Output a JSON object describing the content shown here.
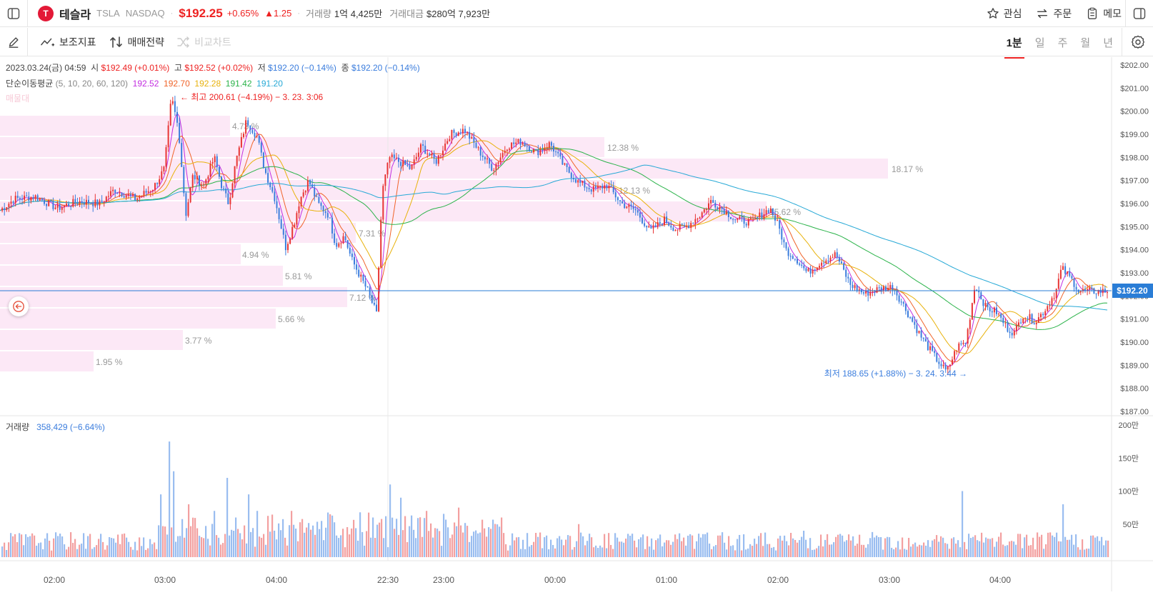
{
  "header": {
    "logo": "T",
    "name": "테슬라",
    "ticker": "TSLA",
    "exchange": "NASDAQ",
    "price": "$192.25",
    "change_pct": "+0.65%",
    "change_abs": "▲1.25",
    "volume_label": "거래량",
    "volume": "1억 4,425만",
    "amount_label": "거래대금",
    "amount": "$280억 7,923만",
    "actions": [
      "관심",
      "주문",
      "메모"
    ]
  },
  "toolbar": {
    "indicators": "보조지표",
    "strategy": "매매전략",
    "compare": "비교차트",
    "periods": [
      "1분",
      "일",
      "주",
      "월",
      "년"
    ],
    "active_period": "1분"
  },
  "ohlc": {
    "date": "2023.03.24(금) 04:59",
    "open_label": "시",
    "open": "$192.49 (+0.01%)",
    "high_label": "고",
    "high": "$192.52 (+0.02%)",
    "low_label": "저",
    "low": "$192.20 (−0.14%)",
    "close_label": "종",
    "close": "$192.20 (−0.14%)"
  },
  "ma": {
    "label": "단순이동평균",
    "periods": "(5, 10, 20, 60, 120)",
    "values": [
      "192.52",
      "192.70",
      "192.28",
      "191.42",
      "191.20"
    ],
    "colors": [
      "#c22de0",
      "#f0642a",
      "#e8b20c",
      "#2bb34a",
      "#27a9d6"
    ]
  },
  "faded_label": "매물대",
  "annotations": {
    "high": "← 최고 200.61 (−4.19%) − 3. 23. 3:06",
    "low": "최저 188.65 (+1.88%) − 3. 24. 3:44 →"
  },
  "current_price_tag": "$192.20",
  "volume_panel": {
    "label": "거래량",
    "value": "358,429 (−6.64%)"
  },
  "colors": {
    "up": "#e83434",
    "down": "#3b7ddd",
    "profile": "#fce8f6"
  },
  "chart_data": {
    "type": "candlestick",
    "y_ticks": [
      "$202.00",
      "$201.00",
      "$200.00",
      "$199.00",
      "$198.00",
      "$197.00",
      "$196.00",
      "$195.00",
      "$194.00",
      "$193.00",
      "$192.00",
      "$191.00",
      "$190.00",
      "$189.00",
      "$188.00",
      "$187.00"
    ],
    "ylim": [
      187,
      202
    ],
    "x_ticks": [
      "02:00",
      "03:00",
      "04:00",
      "22:30",
      "23:00",
      "00:00",
      "01:00",
      "02:00",
      "03:00",
      "04:00"
    ],
    "volume_ticks": [
      "200만",
      "150만",
      "100만",
      "50만"
    ],
    "volume_ylim": [
      0,
      200
    ],
    "price_path": [
      [
        0,
        195.7
      ],
      [
        20,
        196.2
      ],
      [
        50,
        196.3
      ],
      [
        80,
        195.8
      ],
      [
        110,
        196.1
      ],
      [
        140,
        196.0
      ],
      [
        160,
        196.6
      ],
      [
        190,
        196.2
      ],
      [
        215,
        196.7
      ],
      [
        230,
        197.5
      ],
      [
        240,
        200.6
      ],
      [
        250,
        199.2
      ],
      [
        260,
        195.5
      ],
      [
        270,
        197.2
      ],
      [
        285,
        196.8
      ],
      [
        300,
        198.0
      ],
      [
        310,
        196.8
      ],
      [
        320,
        196.0
      ],
      [
        330,
        197.8
      ],
      [
        345,
        199.6
      ],
      [
        360,
        198.9
      ],
      [
        370,
        197.5
      ],
      [
        385,
        196.2
      ],
      [
        400,
        194.1
      ],
      [
        412,
        195.2
      ],
      [
        420,
        196.2
      ],
      [
        432,
        197.0
      ],
      [
        445,
        196.0
      ],
      [
        460,
        195.5
      ],
      [
        470,
        194.2
      ],
      [
        482,
        194.6
      ],
      [
        492,
        193.6
      ],
      [
        505,
        192.8
      ],
      [
        515,
        192.2
      ],
      [
        527,
        191.2
      ],
      [
        535,
        196.5
      ],
      [
        545,
        198.0
      ],
      [
        560,
        197.8
      ],
      [
        575,
        197.5
      ],
      [
        590,
        198.5
      ],
      [
        610,
        197.8
      ],
      [
        630,
        199.0
      ],
      [
        650,
        199.2
      ],
      [
        670,
        198.3
      ],
      [
        690,
        197.5
      ],
      [
        710,
        198.5
      ],
      [
        730,
        198.7
      ],
      [
        750,
        198.2
      ],
      [
        770,
        198.6
      ],
      [
        790,
        197.6
      ],
      [
        810,
        196.9
      ],
      [
        830,
        196.6
      ],
      [
        850,
        196.8
      ],
      [
        870,
        196.0
      ],
      [
        890,
        195.7
      ],
      [
        910,
        194.8
      ],
      [
        930,
        195.3
      ],
      [
        945,
        194.9
      ],
      [
        960,
        195.0
      ],
      [
        980,
        195.5
      ],
      [
        995,
        196.1
      ],
      [
        1010,
        195.8
      ],
      [
        1030,
        195.3
      ],
      [
        1050,
        195.2
      ],
      [
        1065,
        195.5
      ],
      [
        1078,
        195.8
      ],
      [
        1090,
        195.0
      ],
      [
        1100,
        194.0
      ],
      [
        1115,
        193.6
      ],
      [
        1130,
        193.0
      ],
      [
        1150,
        193.5
      ],
      [
        1170,
        193.8
      ],
      [
        1190,
        192.5
      ],
      [
        1210,
        192.1
      ],
      [
        1230,
        192.3
      ],
      [
        1250,
        192.4
      ],
      [
        1270,
        191.3
      ],
      [
        1290,
        190.2
      ],
      [
        1310,
        189.3
      ],
      [
        1325,
        188.7
      ],
      [
        1340,
        189.8
      ],
      [
        1352,
        190.0
      ],
      [
        1365,
        192.5
      ],
      [
        1380,
        191.5
      ],
      [
        1395,
        191.3
      ],
      [
        1410,
        190.6
      ],
      [
        1420,
        190.4
      ],
      [
        1432,
        191.2
      ],
      [
        1450,
        190.9
      ],
      [
        1465,
        191.5
      ],
      [
        1478,
        192.2
      ],
      [
        1486,
        193.2
      ],
      [
        1495,
        192.9
      ],
      [
        1505,
        192.5
      ],
      [
        1510,
        192.2
      ]
    ],
    "volume_profile": [
      {
        "range": "~199.4–200.3",
        "pct": "4.73 %"
      },
      {
        "range": "~198.5–199.4",
        "pct": "12.38 %"
      },
      {
        "range": "~197.6–198.5",
        "pct": "18.17 %"
      },
      {
        "range": "~196.7–197.6",
        "pct": "12.13 %"
      },
      {
        "range": "~195.8–196.7",
        "pct": "15.62 %"
      },
      {
        "range": "~194.9–195.8",
        "pct": "7.31 %"
      },
      {
        "range": "~194.0–194.9",
        "pct": "4.94 %"
      },
      {
        "range": "~193.1–194.0",
        "pct": "5.81 %"
      },
      {
        "range": "~192.2–193.1",
        "pct": "7.12 %"
      },
      {
        "range": "~191.3–192.2",
        "pct": "5.66 %"
      },
      {
        "range": "~190.4–191.3",
        "pct": "3.77 %"
      },
      {
        "range": "~189.5–190.4",
        "pct": "1.95 %"
      }
    ]
  }
}
